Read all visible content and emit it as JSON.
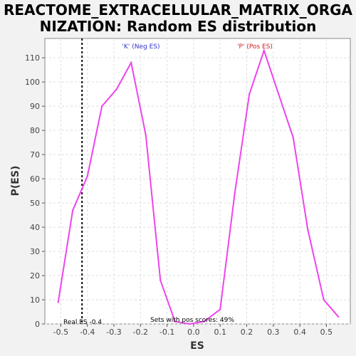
{
  "chart_data": {
    "type": "line",
    "title_line1": "REACTOME_EXTRACELLULAR_MATRIX_ORGA",
    "title_line2": "NIZATION: Random ES distribution",
    "xlabel": "ES",
    "ylabel": "P(ES)",
    "xlim": [
      -0.56,
      0.59
    ],
    "ylim": [
      0,
      118
    ],
    "xticks": [
      -0.5,
      -0.4,
      -0.3,
      -0.2,
      -0.1,
      0.0,
      0.1,
      0.2,
      0.3,
      0.4,
      0.5
    ],
    "xtick_labels": [
      "-0.5",
      "-0.4",
      "-0.3",
      "-0.2",
      "-0.1",
      "0.0",
      "0.1",
      "0.2",
      "0.3",
      "0.4",
      "0.5"
    ],
    "yticks": [
      0,
      10,
      20,
      30,
      40,
      50,
      60,
      70,
      80,
      90,
      100,
      110
    ],
    "ytick_labels": [
      "0",
      "10",
      "20",
      "30",
      "40",
      "50",
      "60",
      "70",
      "80",
      "90",
      "100",
      "110"
    ],
    "grid": true,
    "line_color": "#ee44ee",
    "x": [
      -0.51,
      -0.455,
      -0.4,
      -0.345,
      -0.29,
      -0.235,
      -0.18,
      -0.125,
      -0.07,
      -0.015,
      0.04,
      0.1,
      0.155,
      0.21,
      0.265,
      0.32,
      0.375,
      0.43,
      0.49,
      0.545
    ],
    "y": [
      9,
      47,
      61,
      90,
      97,
      108,
      78,
      18,
      1,
      0,
      1,
      6,
      54,
      95,
      113,
      95,
      77,
      39,
      10,
      3
    ],
    "real_es": -0.42,
    "real_es_label": "Real ES -0.4",
    "neg_label": "'K' (Neg ES)",
    "neg_color": "#3333cc",
    "pos_label": "'P' (Pos ES)",
    "pos_color": "#cc2222",
    "footer": "Sets with pos scores: 49%"
  }
}
